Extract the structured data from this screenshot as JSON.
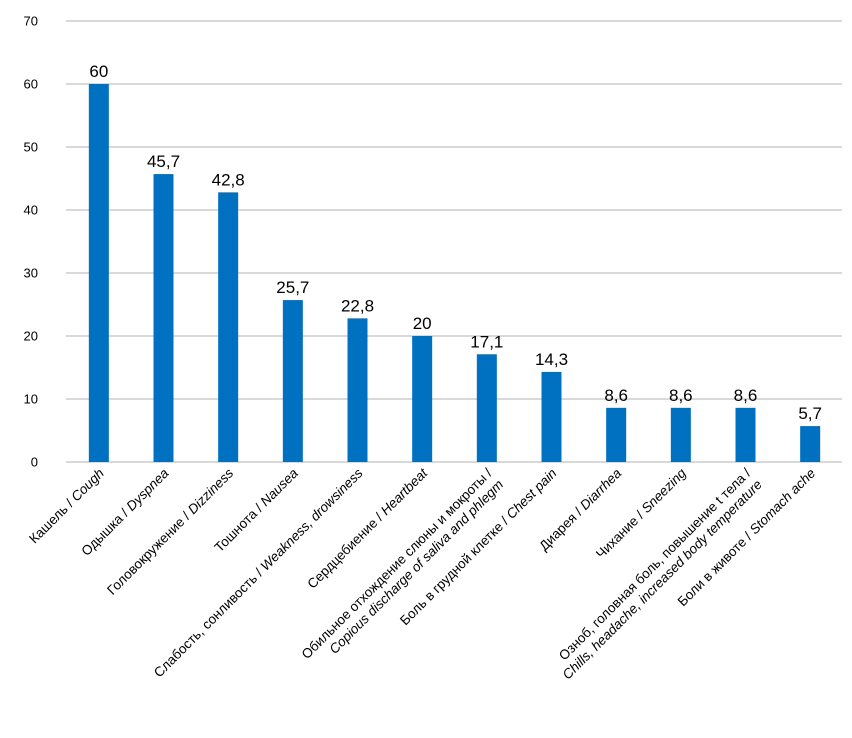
{
  "chart_data": {
    "type": "bar",
    "title": "",
    "xlabel": "",
    "ylabel": "",
    "ylim": [
      0,
      70
    ],
    "yticks": [
      0,
      10,
      20,
      30,
      40,
      50,
      60,
      70
    ],
    "grid": true,
    "bar_color": "#0070C0",
    "categories": [
      {
        "line1": "Кашель / ",
        "line1_it": "Cough",
        "line2": "",
        "line2_it": ""
      },
      {
        "line1": "Одышка / ",
        "line1_it": "Dyspnea",
        "line2": "",
        "line2_it": ""
      },
      {
        "line1": "Головокружение / ",
        "line1_it": "Dizziness",
        "line2": "",
        "line2_it": ""
      },
      {
        "line1": "Тошнота / ",
        "line1_it": "Nausea",
        "line2": "",
        "line2_it": ""
      },
      {
        "line1": "Слабость, сонливость / ",
        "line1_it": "Weakness, drowsiness",
        "line2": "",
        "line2_it": ""
      },
      {
        "line1": "Сердцебиение / ",
        "line1_it": "Heartbeat",
        "line2": "",
        "line2_it": ""
      },
      {
        "line1": "Обильное отхождение слюны и мокроты /",
        "line1_it": "",
        "line2": "",
        "line2_it": "Copious discharge of saliva and phlegm"
      },
      {
        "line1": "Боль в грудной клетке / ",
        "line1_it": "Chest pain",
        "line2": "",
        "line2_it": ""
      },
      {
        "line1": "Диарея / ",
        "line1_it": "Diarrhea",
        "line2": "",
        "line2_it": ""
      },
      {
        "line1": "Чихание / ",
        "line1_it": "Sneezing",
        "line2": "",
        "line2_it": ""
      },
      {
        "line1": "Озноб, головная боль, повышение t тела /",
        "line1_it": "",
        "line2": "",
        "line2_it": "Chills, headache, increased body temperature"
      },
      {
        "line1": "Боли в животе / ",
        "line1_it": "Stomach ache",
        "line2": "",
        "line2_it": ""
      }
    ],
    "values": [
      60,
      45.7,
      42.8,
      25.7,
      22.8,
      20,
      17.1,
      14.3,
      8.6,
      8.6,
      8.6,
      5.7
    ],
    "value_labels": [
      "60",
      "45,7",
      "42,8",
      "25,7",
      "22,8",
      "20",
      "17,1",
      "14,3",
      "8,6",
      "8,6",
      "8,6",
      "5,7"
    ]
  }
}
